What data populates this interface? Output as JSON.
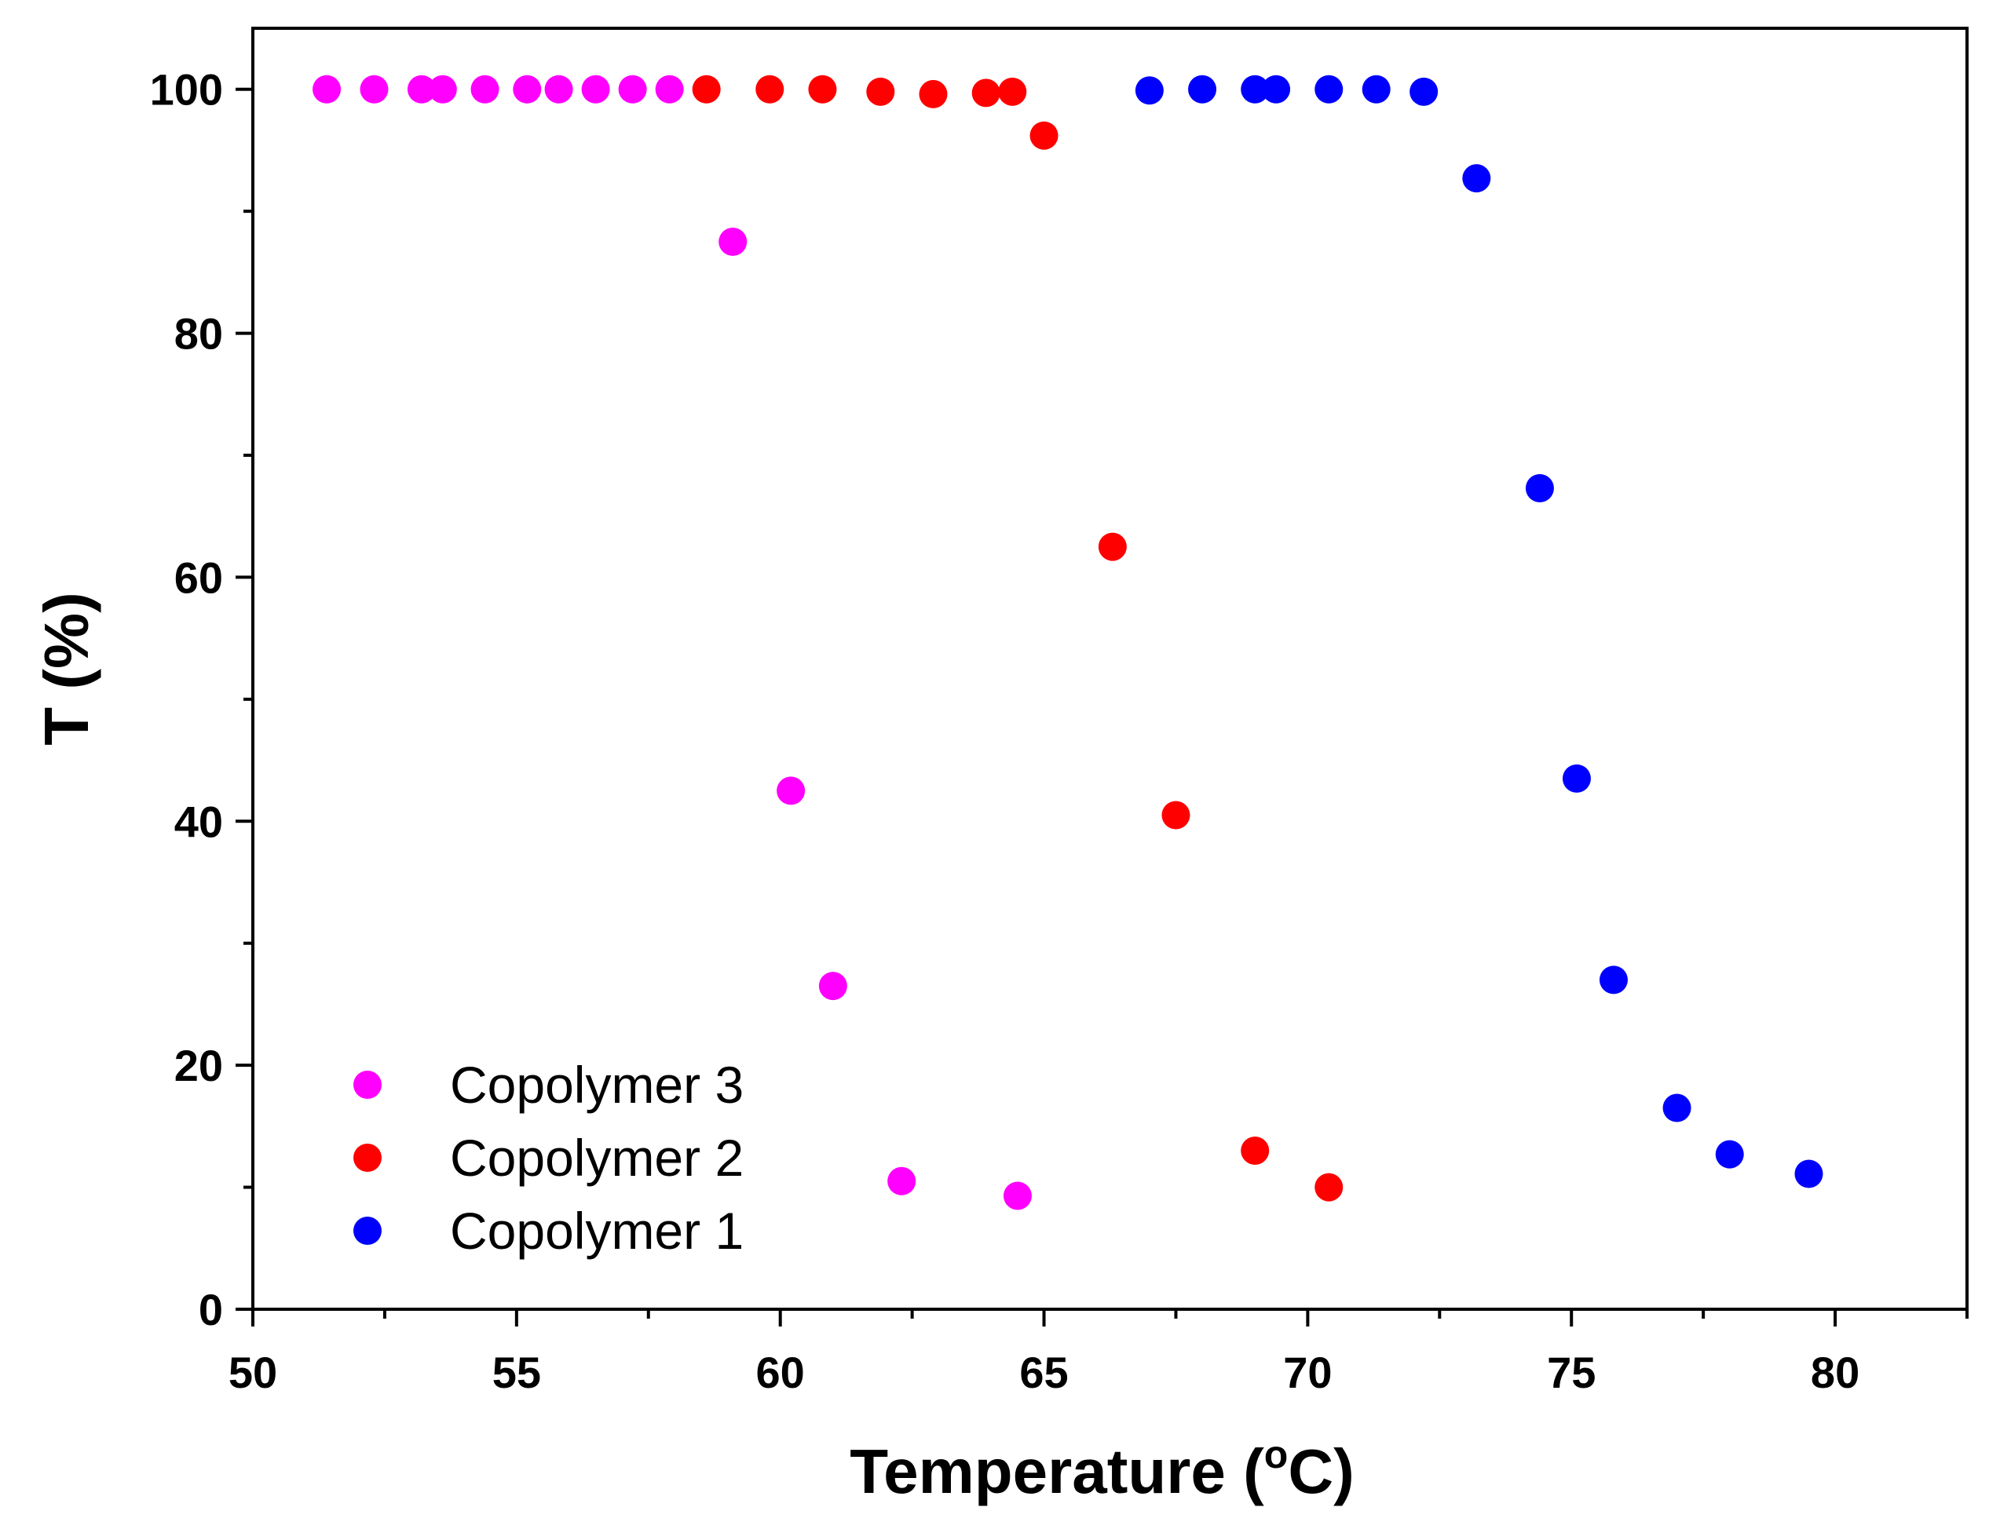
{
  "chart_data": {
    "type": "scatter",
    "title": "",
    "xlabel_main": "Temperature (",
    "xlabel_sup": "o",
    "xlabel_unit": "C)",
    "ylabel": "T (%)",
    "xlim": [
      50,
      82.5
    ],
    "ylim": [
      0,
      105
    ],
    "x_ticks": [
      50,
      55,
      60,
      65,
      70,
      75,
      80
    ],
    "x_tick_labels": [
      "50",
      "55",
      "60",
      "65",
      "70",
      "75",
      "80"
    ],
    "y_ticks": [
      0,
      20,
      40,
      60,
      80,
      100
    ],
    "y_tick_labels": [
      "0",
      "20",
      "40",
      "60",
      "80",
      "100"
    ],
    "grid": false,
    "legend_position": "bottom-left",
    "series": [
      {
        "name": "Copolymer 3",
        "color": "#ff00ff",
        "x": [
          51.4,
          52.3,
          53.2,
          53.6,
          54.4,
          55.2,
          55.8,
          56.5,
          57.2,
          57.9,
          59.1,
          60.2,
          61.0,
          62.3,
          64.5
        ],
        "y": [
          100,
          100,
          100,
          100,
          100,
          100,
          100,
          100,
          100,
          100,
          87.5,
          42.5,
          26.5,
          10.5,
          9.3
        ]
      },
      {
        "name": "Copolymer 2",
        "color": "#ff0000",
        "x": [
          58.6,
          59.8,
          60.8,
          61.9,
          62.9,
          63.9,
          64.4,
          65.0,
          66.3,
          67.5,
          69.0,
          70.4
        ],
        "y": [
          100,
          100,
          100,
          99.8,
          99.6,
          99.7,
          99.8,
          96.2,
          62.5,
          40.5,
          13.0,
          10.0
        ]
      },
      {
        "name": "Copolymer 1",
        "color": "#0000ff",
        "x": [
          67.0,
          68.0,
          69.0,
          69.4,
          70.4,
          71.3,
          72.2,
          73.2,
          74.4,
          75.1,
          75.8,
          77.0,
          78.0,
          79.5
        ],
        "y": [
          99.9,
          100,
          100,
          100,
          100,
          100,
          99.8,
          92.7,
          67.3,
          43.5,
          27.0,
          16.5,
          12.7,
          11.1
        ]
      }
    ]
  }
}
